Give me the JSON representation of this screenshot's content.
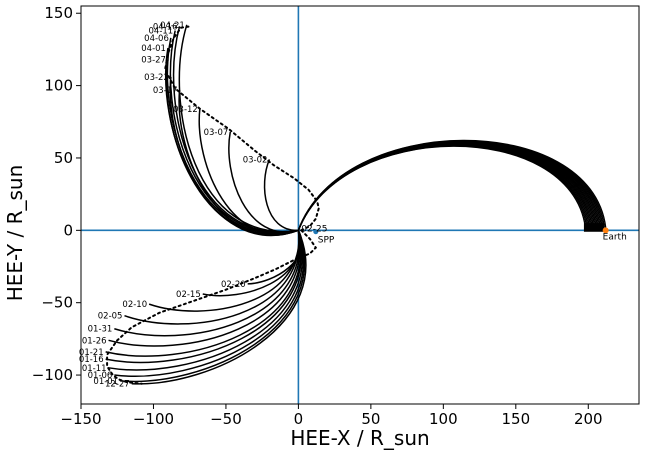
{
  "chart_data": {
    "type": "line",
    "xlabel": "HEE-X / R_sun",
    "ylabel": "HEE-Y / R_sun",
    "xlim": [
      -150,
      235
    ],
    "ylim": [
      -120,
      155
    ],
    "xticks": [
      -150,
      -100,
      -50,
      0,
      50,
      100,
      150,
      200
    ],
    "yticks": [
      -100,
      -50,
      0,
      50,
      100,
      150
    ],
    "axis_line_color": "#1f77b4",
    "line_color": "#000000",
    "markers": {
      "spp": {
        "label": "SPP",
        "x": 12,
        "y": 0,
        "color": "#1f77b4"
      },
      "earth": {
        "label": "Earth",
        "x": 212,
        "y": 0,
        "color": "#ff7f0e"
      },
      "center_label": {
        "label": "02-25",
        "x": 2,
        "y": 0
      }
    },
    "spp_track": [
      [
        2,
        0
      ],
      [
        8,
        3
      ],
      [
        12,
        8
      ],
      [
        14,
        15
      ],
      [
        13,
        20
      ],
      [
        7,
        28
      ],
      [
        -3,
        36
      ],
      [
        -17,
        45
      ],
      [
        -30,
        55
      ],
      [
        -48,
        70
      ],
      [
        -68,
        84
      ],
      [
        -85,
        98
      ],
      [
        -92,
        111
      ],
      [
        -90,
        122
      ],
      [
        -86,
        133
      ],
      [
        -81,
        140
      ],
      [
        -74,
        141
      ]
    ],
    "spp_track_lower": [
      [
        2,
        0
      ],
      [
        8,
        -6
      ],
      [
        12,
        -12
      ],
      [
        8,
        -16
      ],
      [
        -2,
        -20
      ],
      [
        -16,
        -27
      ],
      [
        -30,
        -33
      ],
      [
        -50,
        -41
      ],
      [
        -73,
        -49
      ],
      [
        -96,
        -57
      ],
      [
        -115,
        -67
      ],
      [
        -125,
        -76
      ],
      [
        -132,
        -86
      ],
      [
        -132,
        -94
      ],
      [
        -128,
        -100
      ],
      [
        -124,
        -103
      ],
      [
        -118,
        -105
      ],
      [
        -108,
        -106
      ]
    ],
    "upper_curves": [
      {
        "date": "03-02",
        "tip": [
          -20,
          49
        ]
      },
      {
        "date": "03-07",
        "tip": [
          -47,
          68
        ]
      },
      {
        "date": "03-12",
        "tip": [
          -68,
          84
        ]
      },
      {
        "date": "03-17",
        "tip": [
          -82,
          97
        ]
      },
      {
        "date": "03-22",
        "tip": [
          -88,
          106
        ]
      },
      {
        "date": "03-27",
        "tip": [
          -90,
          118
        ]
      },
      {
        "date": "04-01",
        "tip": [
          -90,
          126
        ]
      },
      {
        "date": "04-06",
        "tip": [
          -88,
          133
        ]
      },
      {
        "date": "04-11",
        "tip": [
          -85,
          138
        ]
      },
      {
        "date": "04-16",
        "tip": [
          -82,
          141
        ]
      },
      {
        "date": "04-21",
        "tip": [
          -77,
          142
        ]
      }
    ],
    "lower_curves": [
      {
        "date": "02-20",
        "tip": [
          -35,
          -37
        ]
      },
      {
        "date": "02-15",
        "tip": [
          -66,
          -44
        ]
      },
      {
        "date": "02-10",
        "tip": [
          -103,
          -51
        ]
      },
      {
        "date": "02-05",
        "tip": [
          -120,
          -59
        ]
      },
      {
        "date": "01-31",
        "tip": [
          -127,
          -68
        ]
      },
      {
        "date": "01-26",
        "tip": [
          -131,
          -76
        ]
      },
      {
        "date": "01-21",
        "tip": [
          -133,
          -84
        ]
      },
      {
        "date": "01-16",
        "tip": [
          -133,
          -89
        ]
      },
      {
        "date": "01-11",
        "tip": [
          -131,
          -95
        ]
      },
      {
        "date": "01-06",
        "tip": [
          -127,
          -100
        ]
      },
      {
        "date": "01-01",
        "tip": [
          -123,
          -104
        ]
      },
      {
        "date": "12-27",
        "tip": [
          -115,
          -106
        ]
      }
    ],
    "earth_arc": {
      "x_start": 0,
      "x_end": 212,
      "x_peak": 96,
      "y_peak_outer": 62,
      "y_peak_inner": 58
    }
  }
}
